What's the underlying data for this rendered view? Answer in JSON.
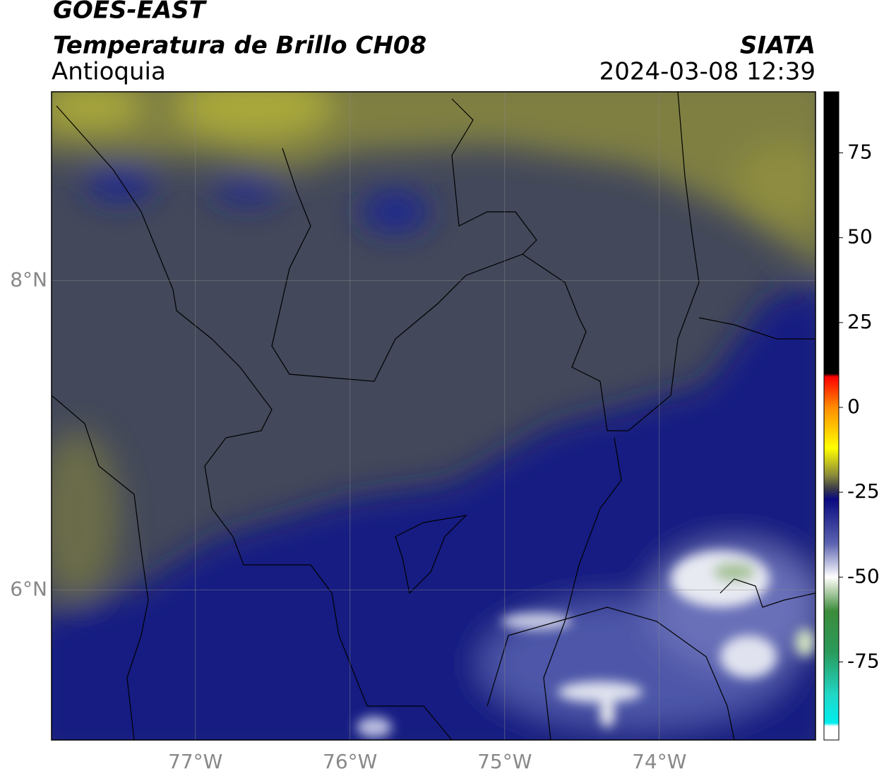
{
  "header": {
    "satellite": "GOES-EAST",
    "title": "Temperatura de Brillo CH08",
    "region": "Antioquia",
    "source": "SIATA",
    "datetime": "2024-03-08 12:39"
  },
  "map": {
    "xlim": [
      -77.93,
      -72.99
    ],
    "ylim": [
      5.03,
      9.22
    ],
    "grid": true,
    "xticks": [
      {
        "value": -77,
        "label": "77°W"
      },
      {
        "value": -76,
        "label": "76°W"
      },
      {
        "value": -75,
        "label": "75°W"
      },
      {
        "value": -74,
        "label": "74°W"
      }
    ],
    "yticks": [
      {
        "value": 8,
        "label": "8°N"
      },
      {
        "value": 6,
        "label": "6°N"
      }
    ]
  },
  "colorbar": {
    "lim": [
      -98,
      93
    ],
    "ticks": [
      75,
      50,
      25,
      0,
      -25,
      -50,
      -75
    ],
    "stops": [
      {
        "value": 93,
        "color": "#000000"
      },
      {
        "value": 10,
        "color": "#000000"
      },
      {
        "value": 9,
        "color": "#ff0000"
      },
      {
        "value": 0,
        "color": "#ff8c00"
      },
      {
        "value": -12,
        "color": "#ffff00"
      },
      {
        "value": -20,
        "color": "#8a8a3a"
      },
      {
        "value": -24,
        "color": "#3a3a4a"
      },
      {
        "value": -27,
        "color": "#0a0a80"
      },
      {
        "value": -40,
        "color": "#5a62b0"
      },
      {
        "value": -50,
        "color": "#ffffff"
      },
      {
        "value": -53,
        "color": "#c8dcc0"
      },
      {
        "value": -60,
        "color": "#3c8c3c"
      },
      {
        "value": -72,
        "color": "#2a9a5a"
      },
      {
        "value": -85,
        "color": "#20d8c8"
      },
      {
        "value": -93,
        "color": "#00eeee"
      },
      {
        "value": -94,
        "color": "#ffffff"
      },
      {
        "value": -98,
        "color": "#ffffff"
      }
    ]
  }
}
